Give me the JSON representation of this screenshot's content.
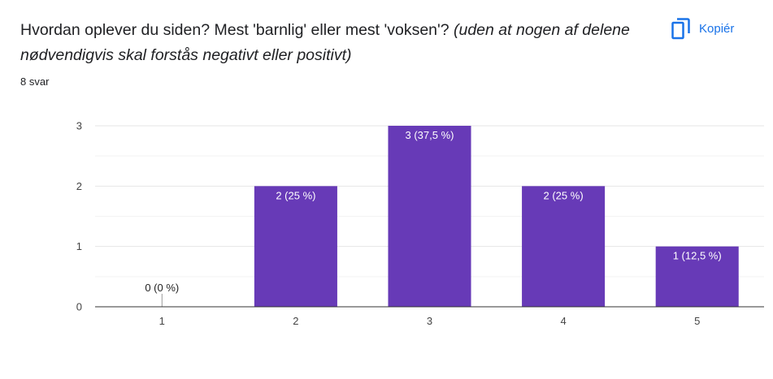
{
  "question": {
    "text": "Hvordan oplever du siden? Mest 'barnlig' eller mest 'voksen'? ",
    "note": "(uden at nogen af delene nødvendigvis skal forstås negativt eller positivt)"
  },
  "response_count": "8 svar",
  "copy_button": {
    "label": "Kopiér",
    "icon": "copy-icon",
    "color": "#1a73e8"
  },
  "chart_data": {
    "type": "bar",
    "categories": [
      "1",
      "2",
      "3",
      "4",
      "5"
    ],
    "values": [
      0,
      2,
      3,
      2,
      1
    ],
    "data_labels": [
      "0 (0 %)",
      "2 (25 %)",
      "3 (37,5 %)",
      "2 (25 %)",
      "1 (12,5 %)"
    ],
    "y_ticks": [
      "0",
      "1",
      "2",
      "3"
    ],
    "ylim": [
      0,
      3
    ],
    "grid": true,
    "bar_color": "#673ab7",
    "title": "",
    "xlabel": "",
    "ylabel": ""
  }
}
